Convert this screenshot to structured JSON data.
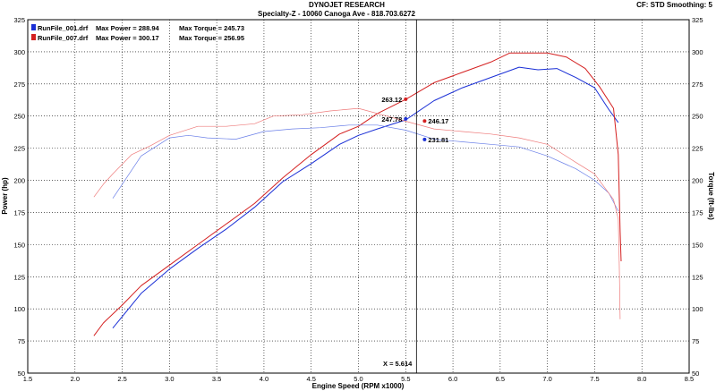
{
  "header": {
    "title": "DYNOJET RESEARCH",
    "subtitle": "Specialty-Z - 10060 Canoga Ave - 818.703.6272",
    "settings": "CF: STD  Smoothing: 5"
  },
  "chart_data": {
    "type": "line",
    "xlabel": "Engine Speed (RPM x1000)",
    "ylabel": "Power (hp)",
    "y2label": "Torque (ft-lbs)",
    "xlim": [
      1.5,
      8.5
    ],
    "ylim": [
      50,
      325
    ],
    "xticks": [
      "1.5",
      "2.0",
      "2.5",
      "3.0",
      "3.5",
      "4.0",
      "4.5",
      "5.0",
      "5.5",
      "6.0",
      "6.5",
      "7.0",
      "7.5",
      "8.0",
      "8.5"
    ],
    "yticks": [
      "50",
      "75",
      "100",
      "125",
      "150",
      "175",
      "200",
      "225",
      "250",
      "275",
      "300",
      "325"
    ],
    "grid": true,
    "legend": [
      {
        "run": "RunFile_001.drf",
        "power": "Max Power = 288.94",
        "torque": "Max Torque = 245.73",
        "color": "#1a2fd6"
      },
      {
        "run": "RunFile_007.drf",
        "power": "Max Power = 300.17",
        "torque": "Max Torque = 256.95",
        "color": "#d42020"
      }
    ],
    "cursor": {
      "x": 5.614,
      "label": "X = 5.614"
    },
    "cursor_values": [
      {
        "label": "263.12",
        "x": 5.5,
        "y": 263.12,
        "color": "#d42020"
      },
      {
        "label": "247.78",
        "x": 5.5,
        "y": 247.78,
        "color": "#1a2fd6"
      },
      {
        "label": "246.17",
        "x": 5.7,
        "y": 246.17,
        "color": "#d42020"
      },
      {
        "label": "231.81",
        "x": 5.7,
        "y": 231.81,
        "color": "#1a2fd6"
      }
    ],
    "series": [
      {
        "name": "RunFile_001.drf Power",
        "color": "#1a2fd6",
        "width": 1.0,
        "x": [
          2.4,
          2.5,
          2.7,
          3.0,
          3.3,
          3.6,
          3.9,
          4.2,
          4.5,
          4.8,
          5.0,
          5.2,
          5.5,
          5.8,
          6.1,
          6.4,
          6.7,
          6.9,
          7.1,
          7.3,
          7.5,
          7.65,
          7.75
        ],
        "y": [
          85,
          94,
          112,
          131,
          147,
          162,
          179,
          199,
          213,
          228,
          235,
          240,
          247,
          262,
          272,
          280,
          288,
          286,
          287,
          280,
          272,
          255,
          245
        ]
      },
      {
        "name": "RunFile_007.drf Power",
        "color": "#d42020",
        "width": 1.0,
        "x": [
          2.2,
          2.3,
          2.5,
          2.7,
          3.0,
          3.3,
          3.6,
          3.9,
          4.2,
          4.5,
          4.8,
          5.0,
          5.2,
          5.5,
          5.8,
          6.1,
          6.4,
          6.6,
          6.8,
          7.0,
          7.2,
          7.4,
          7.55,
          7.7,
          7.75,
          7.77,
          7.78
        ],
        "y": [
          79,
          89,
          103,
          118,
          134,
          150,
          166,
          182,
          202,
          220,
          236,
          242,
          252,
          263,
          276,
          284,
          292,
          299,
          299,
          299,
          296,
          287,
          273,
          256,
          220,
          160,
          137
        ]
      },
      {
        "name": "RunFile_001.drf Torque",
        "color": "#6a7fe8",
        "width": 0.7,
        "x": [
          2.4,
          2.5,
          2.7,
          3.0,
          3.2,
          3.4,
          3.7,
          4.0,
          4.3,
          4.6,
          4.9,
          5.2,
          5.5,
          5.8,
          6.1,
          6.4,
          6.7,
          7.0,
          7.3,
          7.5,
          7.65,
          7.75
        ],
        "y": [
          186,
          197,
          219,
          233,
          235,
          233,
          232,
          238,
          240,
          241,
          243,
          243,
          239,
          232,
          230,
          228,
          226,
          219,
          209,
          200,
          190,
          176
        ]
      },
      {
        "name": "RunFile_007.drf Torque",
        "color": "#ee7a7a",
        "width": 0.7,
        "x": [
          2.2,
          2.3,
          2.4,
          2.6,
          2.8,
          3.0,
          3.3,
          3.6,
          3.9,
          4.1,
          4.4,
          4.7,
          5.0,
          5.3,
          5.5,
          5.8,
          6.1,
          6.4,
          6.7,
          7.0,
          7.3,
          7.5,
          7.7,
          7.75,
          7.76,
          7.77
        ],
        "y": [
          187,
          197,
          205,
          220,
          227,
          235,
          242,
          242,
          244,
          250,
          251,
          254,
          256,
          250,
          246,
          240,
          238,
          236,
          233,
          228,
          214,
          205,
          185,
          170,
          135,
          92
        ]
      }
    ]
  }
}
